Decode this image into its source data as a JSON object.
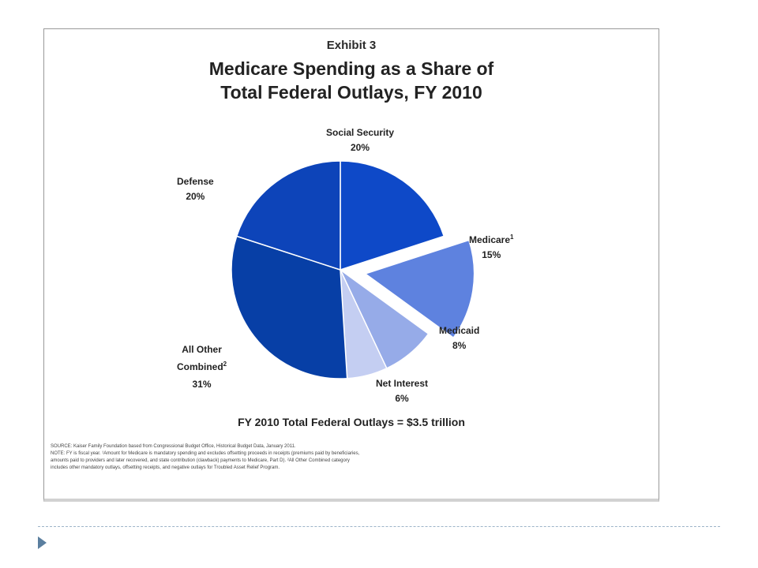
{
  "exhibit": {
    "label": "Exhibit 3",
    "title_line1": "Medicare Spending as a Share of",
    "title_line2": "Total Federal Outlays, FY 2010",
    "total": "FY 2010 Total Federal Outlays = $3.5 trillion",
    "notes": [
      "SOURCE: Kaiser Family Foundation based from Congressional Budget Office, Historical Budget Data, January 2011.",
      "NOTE: FY is fiscal year. ¹Amount for Medicare is mandatory spending and excludes offsetting proceeds in receipts (premiums paid by beneficiaries,",
      "amounts paid to providers and later recovered, and state contribution (clawback) payments to Medicare, Part D). ²All Other Combined category",
      "includes other mandatory outlays, offsetting receipts, and negative outlays for Troubled Asset Relief Program."
    ]
  },
  "chart_data": {
    "type": "pie",
    "title": "Medicare Spending as a Share of Total Federal Outlays, FY 2010",
    "unit": "%",
    "slices": [
      {
        "label": "Social Security",
        "value": 20,
        "display": "20%",
        "color": "#0e49c8",
        "exploded": false
      },
      {
        "label": "Medicare",
        "sup": "1",
        "value": 15,
        "display": "15%",
        "color": "#5e82df",
        "exploded": true
      },
      {
        "label": "Medicaid",
        "value": 8,
        "display": "8%",
        "color": "#96abe8",
        "exploded": false
      },
      {
        "label": "Net Interest",
        "value": 6,
        "display": "6%",
        "color": "#c4cef2",
        "exploded": false
      },
      {
        "label": "All Other Combined",
        "sup": "2",
        "value": 31,
        "display": "31%",
        "color": "#073fa6",
        "exploded": false
      },
      {
        "label": "Defense",
        "value": 20,
        "display": "20%",
        "color": "#0d44b9",
        "exploded": false
      }
    ]
  }
}
